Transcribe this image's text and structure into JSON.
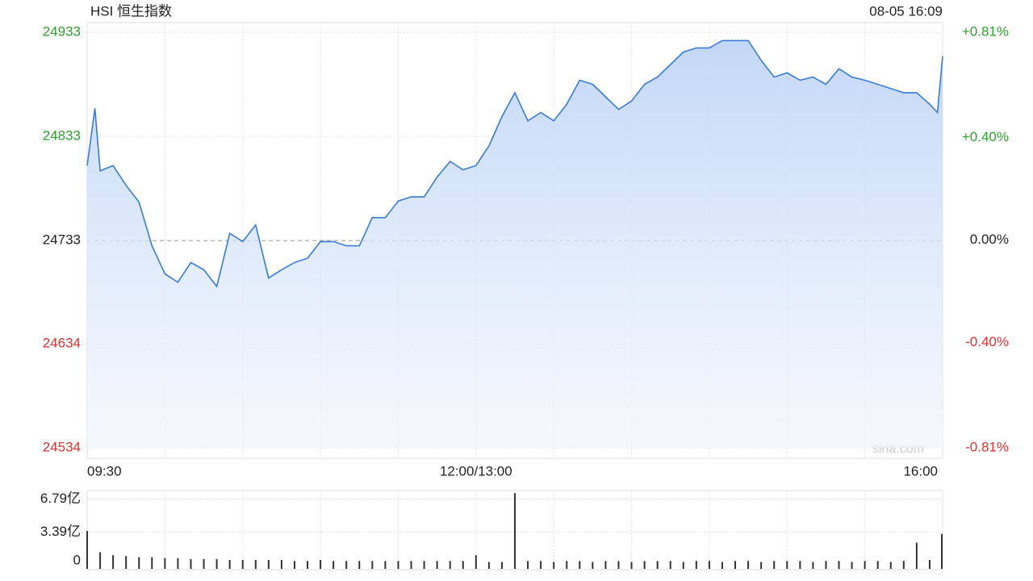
{
  "chart_data": [
    {
      "type": "line",
      "title": "HSI 恒生指数",
      "subtitle": "08-05 16:09",
      "annotation": "sina.com",
      "color": "#3a7bd5",
      "up_color": "#2e9e2e",
      "down_color": "#e03030",
      "x": [
        0,
        3,
        5,
        10,
        15,
        20,
        25,
        30,
        35,
        40,
        45,
        50,
        55,
        60,
        65,
        70,
        75,
        80,
        85,
        90,
        95,
        100,
        105,
        110,
        115,
        120,
        125,
        130,
        135,
        140,
        145,
        150,
        155,
        160,
        165,
        170,
        175,
        180,
        185,
        190,
        195,
        200,
        205,
        210,
        215,
        220,
        225,
        230,
        235,
        240,
        245,
        250,
        255,
        260,
        265,
        270,
        275,
        280,
        285,
        290,
        295,
        300,
        305,
        310,
        315,
        320,
        325,
        328,
        330
      ],
      "values": [
        24805,
        24860,
        24800,
        24805,
        24786,
        24770,
        24728,
        24701,
        24693,
        24712,
        24705,
        24689,
        24740,
        24732,
        24748,
        24697,
        24705,
        24712,
        24716,
        24732,
        24732,
        24728,
        24728,
        24755,
        24755,
        24771,
        24775,
        24775,
        24794,
        24809,
        24801,
        24805,
        24824,
        24852,
        24875,
        24848,
        24856,
        24848,
        24864,
        24887,
        24883,
        24871,
        24859,
        24867,
        24883,
        24890,
        24902,
        24914,
        24918,
        24918,
        24925,
        24925,
        24925,
        24906,
        24890,
        24894,
        24887,
        24890,
        24883,
        24898,
        24890,
        24887,
        24883,
        24879,
        24875,
        24875,
        24864,
        24856,
        24910
      ],
      "xlim": [
        0,
        330
      ],
      "xticks": [
        {
          "value": 0,
          "label": "09:30"
        },
        {
          "value": 150,
          "label": "12:00/13:00"
        },
        {
          "value": 330,
          "label": "16:00"
        }
      ],
      "xgrid": [
        0,
        30,
        60,
        90,
        120,
        150,
        180,
        210,
        240,
        270,
        300,
        330
      ],
      "ylim": [
        24534,
        24933
      ],
      "yticks": [
        24933,
        24833,
        24733,
        24634,
        24534
      ],
      "baseline": 24733,
      "y2lim": [
        -0.81,
        0.81
      ],
      "y2ticks": [
        {
          "value": 0.81,
          "label": "+0.81%"
        },
        {
          "value": 0.4,
          "label": "+0.40%"
        },
        {
          "value": 0,
          "label": "0.00%"
        },
        {
          "value": -0.4,
          "label": "-0.40%"
        },
        {
          "value": -0.81,
          "label": "-0.81%"
        }
      ],
      "grid": true
    },
    {
      "type": "bar",
      "color": "#333333",
      "x": [
        0,
        5,
        10,
        15,
        20,
        25,
        30,
        35,
        40,
        45,
        50,
        55,
        60,
        65,
        70,
        75,
        80,
        85,
        90,
        95,
        100,
        105,
        110,
        115,
        120,
        125,
        130,
        135,
        140,
        145,
        150,
        155,
        160,
        165,
        170,
        175,
        180,
        185,
        190,
        195,
        200,
        205,
        210,
        215,
        220,
        225,
        230,
        235,
        240,
        245,
        250,
        255,
        260,
        265,
        270,
        275,
        280,
        285,
        290,
        295,
        300,
        305,
        310,
        315,
        320,
        325,
        330
      ],
      "values": [
        3.5,
        1.3,
        1.0,
        0.9,
        0.8,
        0.8,
        0.7,
        0.7,
        0.6,
        0.6,
        0.6,
        0.5,
        0.5,
        0.5,
        0.5,
        0.5,
        0.4,
        0.4,
        0.5,
        0.4,
        0.4,
        0.4,
        0.4,
        0.4,
        0.4,
        0.4,
        0.4,
        0.4,
        0.4,
        0.4,
        1.0,
        0.3,
        0.3,
        7.4,
        0.4,
        0.4,
        0.3,
        0.4,
        0.4,
        0.3,
        0.4,
        0.4,
        0.3,
        0.4,
        0.4,
        0.4,
        0.3,
        0.4,
        0.4,
        0.3,
        0.4,
        0.4,
        0.3,
        0.4,
        0.4,
        0.4,
        0.3,
        0.4,
        0.4,
        0.3,
        0.4,
        0.4,
        0.3,
        0.4,
        2.3,
        0.5,
        3.2
      ],
      "xlim": [
        0,
        330
      ],
      "ylim": [
        0,
        7.5
      ],
      "yticks": [
        0,
        {
          "value": 3.39,
          "label": "3.39亿"
        },
        {
          "value": 6.79,
          "label": "6.79亿"
        }
      ],
      "grid": true
    }
  ]
}
